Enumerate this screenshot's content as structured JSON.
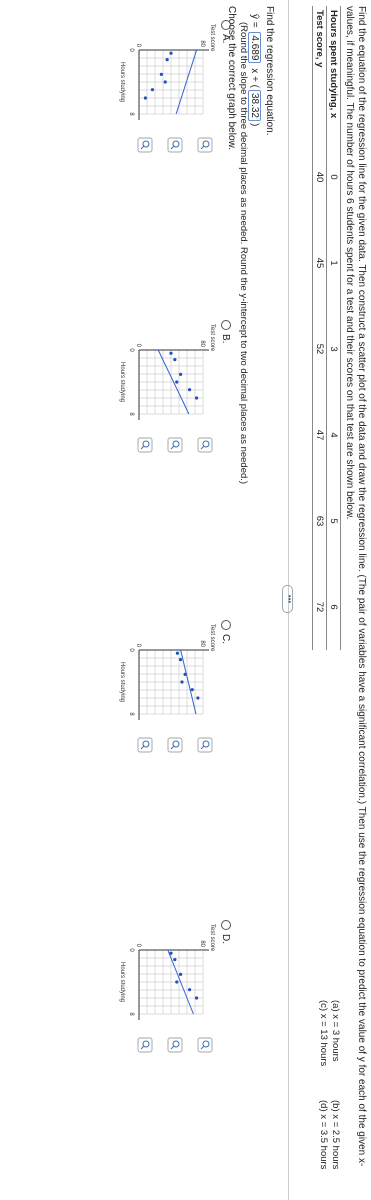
{
  "question": "Find the equation of the regression line for the given data. Then construct a scatter plot of the data and draw the regression line. (The pair of variables have a significant correlation.) Then use the regression equation to predict the value of y for each of the given x-values, if meaningful. The number of hours 6 students spent for a test and their scores on that test are shown below.",
  "table": {
    "header": [
      "Hours spent studying, x",
      "0",
      "1",
      "3",
      "4",
      "5",
      "6"
    ],
    "rows": [
      [
        "Test score, y",
        "40",
        "45",
        "52",
        "47",
        "63",
        "72"
      ]
    ]
  },
  "parts": [
    "(a) x = 3 hours",
    "(b) x = 2.5 hours",
    "(c) x = 13 hours",
    "(d) x = 3.5 hours"
  ],
  "prompt": "Find the regression equation.",
  "equation": {
    "lhs": "ŷ =",
    "slope": "4.689",
    "mid": "x +",
    "open": "(",
    "intercept": "38.32",
    "close": ")"
  },
  "hint": "(Round the slope to three decimal places as needed. Round the y-intercept to two decimal places as needed.)",
  "choose": "Choose the correct graph below.",
  "options": [
    {
      "label": "A.",
      "y_axis": "Test score",
      "y_top": "80",
      "y_bottom": "0",
      "x_left": "0",
      "x_right": "8",
      "x_axis": "Hours studying"
    },
    {
      "label": "B.",
      "y_axis": "Test score",
      "y_top": "80",
      "y_bottom": "0",
      "x_left": "0",
      "x_right": "8",
      "x_axis": "Hours studying"
    },
    {
      "label": "C.",
      "y_axis": "Test score",
      "y_top": "80",
      "y_bottom": "0",
      "x_left": "0",
      "x_right": "8",
      "x_axis": "Hours studying"
    },
    {
      "label": "D.",
      "y_axis": "Test score",
      "y_top": "80",
      "y_bottom": "0",
      "x_left": "0",
      "x_right": "8",
      "x_axis": "Hours studying"
    }
  ]
}
